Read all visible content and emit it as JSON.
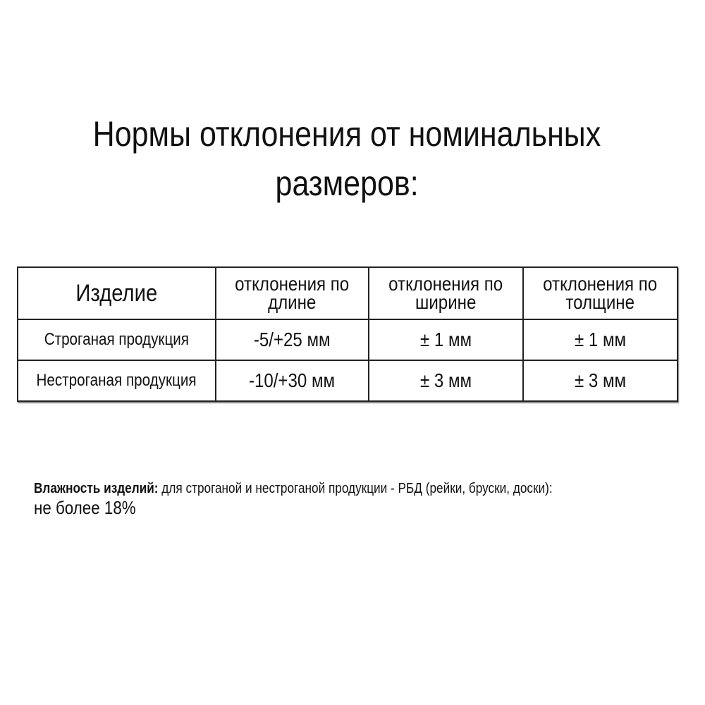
{
  "title": {
    "line1": "Нормы отклонения от номинальных",
    "line2": "размеров:"
  },
  "table": {
    "headers": [
      "Изделие",
      "отклонения по длине",
      "отклонения по ширине",
      "отклонения по толщине"
    ],
    "header_lines": [
      [
        "Изделие"
      ],
      [
        "отклонения по",
        "длине"
      ],
      [
        "отклонения по",
        "ширине"
      ],
      [
        "отклонения по",
        "толщине"
      ]
    ],
    "rows": [
      [
        "Строганая продукция",
        "-5/+25 мм",
        "± 1 мм",
        "± 1 мм"
      ],
      [
        "Нестроганая продукция",
        "-10/+30 мм",
        "± 3 мм",
        "± 3 мм"
      ]
    ]
  },
  "note": {
    "label": "Влажность изделий:",
    "text": " для строганой и нестроганой продукции - РБД (рейки, бруски, доски):",
    "value": "не более 18%"
  }
}
